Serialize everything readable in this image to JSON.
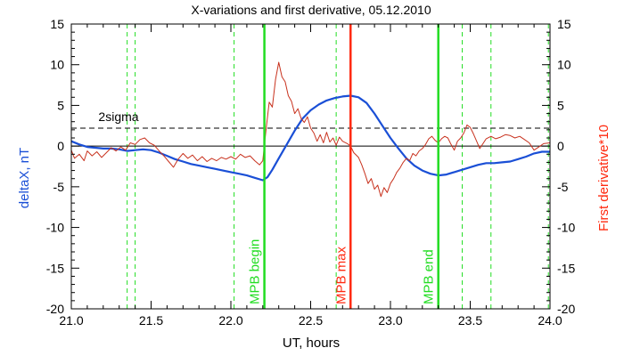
{
  "chart_data": {
    "type": "line",
    "title": "X-variations and first derivative, 05.12.2010",
    "xlabel": "UT, hours",
    "ylabel_left": "deltaX, nT",
    "ylabel_right": "First derivative*10",
    "xlim": [
      21.0,
      24.0
    ],
    "ylim": [
      -20,
      15
    ],
    "x_ticks": [
      "21.0",
      "21.5",
      "22.0",
      "22.5",
      "23.0",
      "23.5",
      "24.0"
    ],
    "y_ticks": [
      "-20",
      "-15",
      "-10",
      "-5",
      "0",
      "5",
      "10",
      "15"
    ],
    "threshold": {
      "label": "2sigma",
      "value": 2.2
    },
    "colors": {
      "deltaX": "#1a4fd6",
      "derivative": "#c8321e",
      "green": "#22dd22",
      "red": "#ff2a10",
      "axis": "#000000"
    },
    "series": [
      {
        "name": "deltaX",
        "axis": "left",
        "points": [
          [
            21.0,
            0.6
          ],
          [
            21.05,
            0.2
          ],
          [
            21.1,
            -0.1
          ],
          [
            21.15,
            -0.2
          ],
          [
            21.2,
            -0.3
          ],
          [
            21.25,
            -0.3
          ],
          [
            21.3,
            -0.4
          ],
          [
            21.35,
            -0.6
          ],
          [
            21.4,
            -0.5
          ],
          [
            21.45,
            -0.4
          ],
          [
            21.5,
            -0.5
          ],
          [
            21.55,
            -0.8
          ],
          [
            21.6,
            -1.2
          ],
          [
            21.65,
            -1.6
          ],
          [
            21.7,
            -1.9
          ],
          [
            21.75,
            -2.2
          ],
          [
            21.8,
            -2.4
          ],
          [
            21.85,
            -2.6
          ],
          [
            21.9,
            -2.8
          ],
          [
            21.95,
            -3.0
          ],
          [
            22.0,
            -3.2
          ],
          [
            22.05,
            -3.4
          ],
          [
            22.1,
            -3.6
          ],
          [
            22.15,
            -3.9
          ],
          [
            22.2,
            -4.2
          ],
          [
            22.23,
            -3.8
          ],
          [
            22.26,
            -2.9
          ],
          [
            22.3,
            -1.5
          ],
          [
            22.35,
            0.2
          ],
          [
            22.4,
            1.9
          ],
          [
            22.45,
            3.4
          ],
          [
            22.5,
            4.4
          ],
          [
            22.55,
            5.1
          ],
          [
            22.6,
            5.6
          ],
          [
            22.65,
            5.9
          ],
          [
            22.7,
            6.1
          ],
          [
            22.75,
            6.2
          ],
          [
            22.8,
            6.0
          ],
          [
            22.85,
            5.3
          ],
          [
            22.9,
            4.0
          ],
          [
            22.95,
            2.5
          ],
          [
            23.0,
            1.0
          ],
          [
            23.05,
            -0.3
          ],
          [
            23.1,
            -1.5
          ],
          [
            23.15,
            -2.4
          ],
          [
            23.2,
            -3.0
          ],
          [
            23.25,
            -3.4
          ],
          [
            23.3,
            -3.6
          ],
          [
            23.35,
            -3.5
          ],
          [
            23.4,
            -3.2
          ],
          [
            23.45,
            -2.9
          ],
          [
            23.5,
            -2.6
          ],
          [
            23.55,
            -2.3
          ],
          [
            23.6,
            -2.1
          ],
          [
            23.65,
            -2.1
          ],
          [
            23.7,
            -2.0
          ],
          [
            23.75,
            -1.9
          ],
          [
            23.8,
            -1.6
          ],
          [
            23.85,
            -1.3
          ],
          [
            23.9,
            -0.9
          ],
          [
            23.95,
            -0.7
          ],
          [
            24.0,
            -0.7
          ]
        ]
      },
      {
        "name": "First derivative*10",
        "axis": "right",
        "points": [
          [
            21.0,
            -0.5
          ],
          [
            21.02,
            -1.5
          ],
          [
            21.05,
            -1.0
          ],
          [
            21.08,
            -1.8
          ],
          [
            21.1,
            -0.6
          ],
          [
            21.13,
            -1.2
          ],
          [
            21.16,
            -0.7
          ],
          [
            21.19,
            -1.4
          ],
          [
            21.22,
            -0.8
          ],
          [
            21.25,
            -0.2
          ],
          [
            21.28,
            -0.6
          ],
          [
            21.31,
            -0.1
          ],
          [
            21.34,
            -0.5
          ],
          [
            21.37,
            0.4
          ],
          [
            21.4,
            0.2
          ],
          [
            21.43,
            0.8
          ],
          [
            21.46,
            1.0
          ],
          [
            21.49,
            0.4
          ],
          [
            21.52,
            0.1
          ],
          [
            21.55,
            -0.6
          ],
          [
            21.58,
            -1.2
          ],
          [
            21.61,
            -1.9
          ],
          [
            21.64,
            -2.6
          ],
          [
            21.67,
            -1.6
          ],
          [
            21.7,
            -0.9
          ],
          [
            21.73,
            -1.5
          ],
          [
            21.76,
            -1.1
          ],
          [
            21.79,
            -1.8
          ],
          [
            21.82,
            -1.3
          ],
          [
            21.85,
            -1.9
          ],
          [
            21.88,
            -1.5
          ],
          [
            21.91,
            -1.8
          ],
          [
            21.94,
            -1.4
          ],
          [
            21.97,
            -1.6
          ],
          [
            22.0,
            -1.3
          ],
          [
            22.03,
            -1.6
          ],
          [
            22.06,
            -1.0
          ],
          [
            22.09,
            -1.4
          ],
          [
            22.12,
            -1.2
          ],
          [
            22.15,
            -1.8
          ],
          [
            22.18,
            -2.3
          ],
          [
            22.2,
            -1.8
          ],
          [
            22.22,
            2.0
          ],
          [
            22.24,
            5.4
          ],
          [
            22.26,
            4.8
          ],
          [
            22.28,
            8.2
          ],
          [
            22.3,
            10.3
          ],
          [
            22.32,
            8.5
          ],
          [
            22.34,
            7.9
          ],
          [
            22.36,
            6.2
          ],
          [
            22.38,
            5.5
          ],
          [
            22.4,
            4.0
          ],
          [
            22.42,
            4.6
          ],
          [
            22.44,
            3.4
          ],
          [
            22.46,
            2.9
          ],
          [
            22.48,
            3.6
          ],
          [
            22.5,
            2.2
          ],
          [
            22.52,
            1.6
          ],
          [
            22.54,
            0.6
          ],
          [
            22.56,
            1.4
          ],
          [
            22.58,
            0.4
          ],
          [
            22.6,
            1.7
          ],
          [
            22.62,
            0.5
          ],
          [
            22.64,
            1.0
          ],
          [
            22.66,
            0.1
          ],
          [
            22.68,
            1.1
          ],
          [
            22.7,
            0.6
          ],
          [
            22.73,
            0.3
          ],
          [
            22.75,
            0.0
          ],
          [
            22.77,
            -0.8
          ],
          [
            22.8,
            -1.4
          ],
          [
            22.82,
            -2.3
          ],
          [
            22.84,
            -3.4
          ],
          [
            22.86,
            -4.6
          ],
          [
            22.88,
            -4.0
          ],
          [
            22.9,
            -5.3
          ],
          [
            22.92,
            -4.8
          ],
          [
            22.94,
            -6.2
          ],
          [
            22.96,
            -5.1
          ],
          [
            22.98,
            -5.7
          ],
          [
            23.0,
            -4.6
          ],
          [
            23.02,
            -4.0
          ],
          [
            23.04,
            -3.2
          ],
          [
            23.06,
            -2.7
          ],
          [
            23.08,
            -2.0
          ],
          [
            23.1,
            -1.5
          ],
          [
            23.12,
            -1.8
          ],
          [
            23.14,
            -0.9
          ],
          [
            23.16,
            -1.2
          ],
          [
            23.18,
            -0.6
          ],
          [
            23.2,
            -0.3
          ],
          [
            23.22,
            0.2
          ],
          [
            23.24,
            0.9
          ],
          [
            23.26,
            1.2
          ],
          [
            23.28,
            0.7
          ],
          [
            23.3,
            0.4
          ],
          [
            23.32,
            0.9
          ],
          [
            23.34,
            1.2
          ],
          [
            23.36,
            1.0
          ],
          [
            23.38,
            0.2
          ],
          [
            23.4,
            -0.5
          ],
          [
            23.42,
            0.6
          ],
          [
            23.44,
            1.0
          ],
          [
            23.46,
            1.6
          ],
          [
            23.48,
            2.6
          ],
          [
            23.5,
            2.3
          ],
          [
            23.52,
            1.5
          ],
          [
            23.54,
            0.6
          ],
          [
            23.56,
            -0.3
          ],
          [
            23.58,
            0.3
          ],
          [
            23.6,
            0.9
          ],
          [
            23.63,
            1.2
          ],
          [
            23.66,
            0.9
          ],
          [
            23.69,
            1.1
          ],
          [
            23.72,
            1.4
          ],
          [
            23.75,
            1.3
          ],
          [
            23.78,
            1.0
          ],
          [
            23.81,
            1.2
          ],
          [
            23.84,
            0.8
          ],
          [
            23.87,
            0.4
          ],
          [
            23.9,
            -0.5
          ],
          [
            23.93,
            -0.1
          ],
          [
            23.96,
            0.3
          ],
          [
            24.0,
            0.4
          ]
        ]
      }
    ],
    "vertical_markers": [
      {
        "x": 22.21,
        "label": "MPB begin",
        "color": "#22dd22",
        "style": "solid"
      },
      {
        "x": 22.75,
        "label": "MPB max",
        "color": "#ff2a10",
        "style": "solid"
      },
      {
        "x": 23.3,
        "label": "MPB end",
        "color": "#22dd22",
        "style": "solid"
      }
    ],
    "dashed_lines": [
      21.35,
      21.4,
      22.02,
      22.66,
      23.45,
      23.63,
      23.99
    ]
  }
}
